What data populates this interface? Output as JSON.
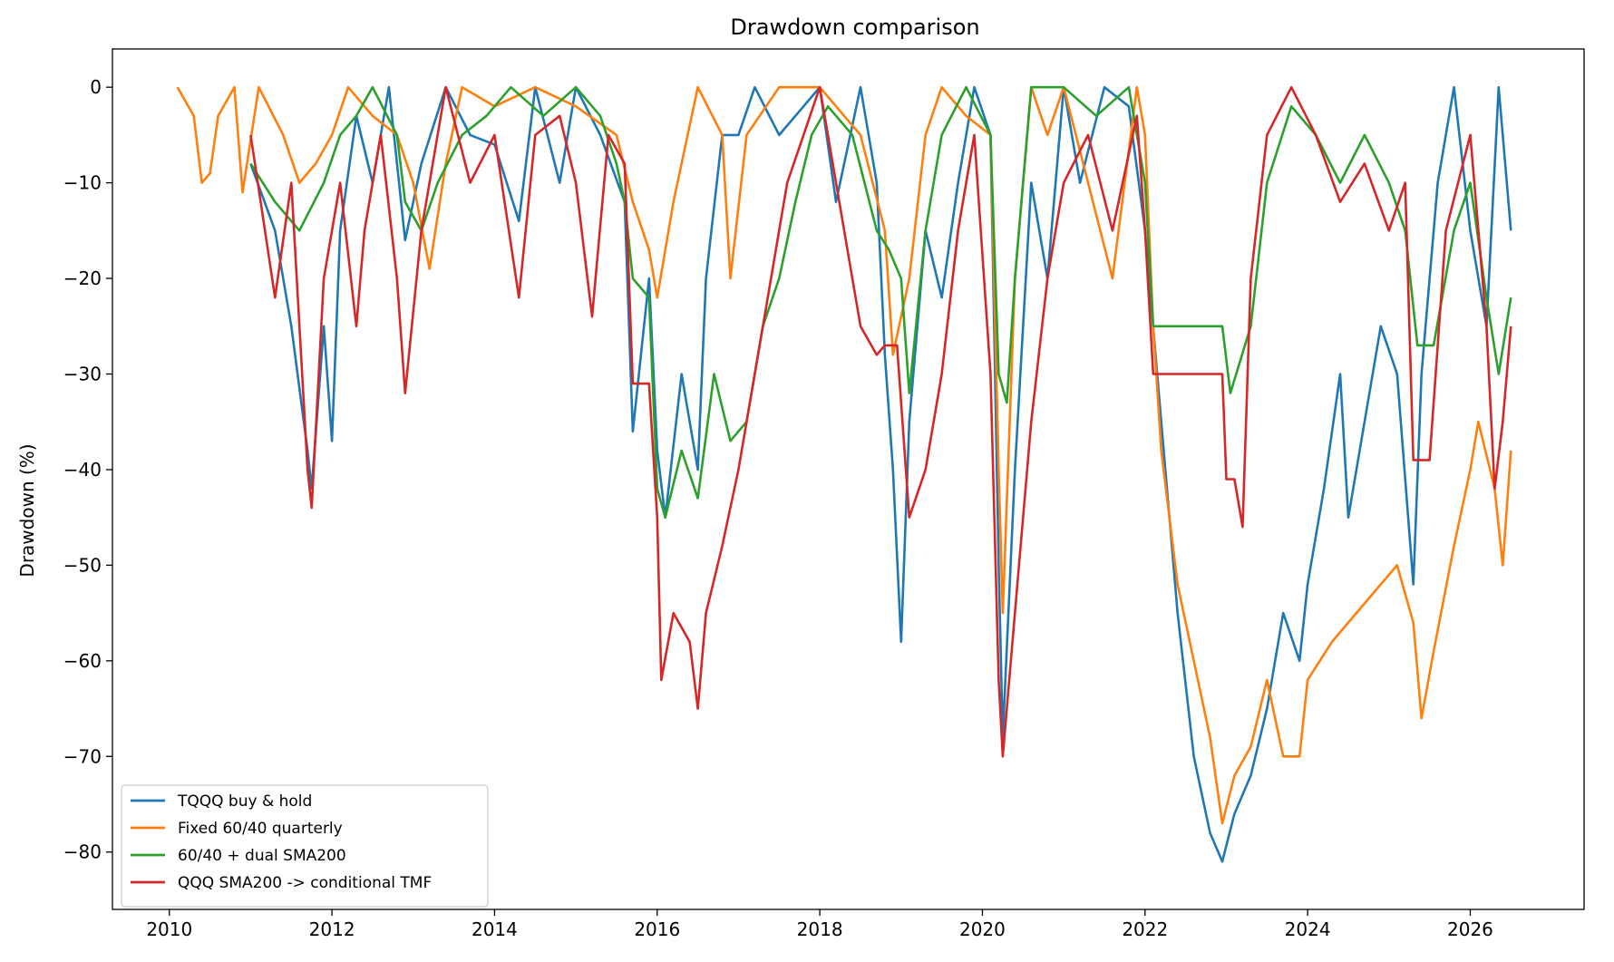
{
  "chart_data": {
    "type": "line",
    "title": "Drawdown comparison",
    "xlabel": "",
    "ylabel": "Drawdown (%)",
    "xlim": [
      2009.3,
      2027.4
    ],
    "ylim": [
      -86,
      4
    ],
    "x_ticks": [
      2010,
      2012,
      2014,
      2016,
      2018,
      2020,
      2022,
      2024,
      2026
    ],
    "y_ticks": [
      0,
      -10,
      -20,
      -30,
      -40,
      -50,
      -60,
      -70,
      -80
    ],
    "grid": false,
    "legend_position": "lower-left",
    "series": [
      {
        "name": "TQQQ buy & hold",
        "color": "#1f77b4",
        "points": [
          [
            2011.0,
            -8
          ],
          [
            2011.3,
            -15
          ],
          [
            2011.5,
            -25
          ],
          [
            2011.7,
            -38
          ],
          [
            2011.75,
            -42
          ],
          [
            2011.9,
            -25
          ],
          [
            2012.0,
            -37
          ],
          [
            2012.1,
            -15
          ],
          [
            2012.3,
            -3
          ],
          [
            2012.5,
            -10
          ],
          [
            2012.7,
            0
          ],
          [
            2012.9,
            -16
          ],
          [
            2013.1,
            -8
          ],
          [
            2013.4,
            0
          ],
          [
            2013.7,
            -5
          ],
          [
            2014.0,
            -6
          ],
          [
            2014.3,
            -14
          ],
          [
            2014.5,
            0
          ],
          [
            2014.8,
            -10
          ],
          [
            2015.0,
            0
          ],
          [
            2015.3,
            -5
          ],
          [
            2015.6,
            -12
          ],
          [
            2015.7,
            -36
          ],
          [
            2015.9,
            -20
          ],
          [
            2016.0,
            -38
          ],
          [
            2016.1,
            -45
          ],
          [
            2016.3,
            -30
          ],
          [
            2016.5,
            -40
          ],
          [
            2016.6,
            -20
          ],
          [
            2016.8,
            -5
          ],
          [
            2017.0,
            -5
          ],
          [
            2017.2,
            0
          ],
          [
            2017.5,
            -5
          ],
          [
            2017.8,
            -2
          ],
          [
            2018.0,
            0
          ],
          [
            2018.2,
            -12
          ],
          [
            2018.5,
            0
          ],
          [
            2018.7,
            -10
          ],
          [
            2018.8,
            -28
          ],
          [
            2018.9,
            -40
          ],
          [
            2019.0,
            -58
          ],
          [
            2019.1,
            -35
          ],
          [
            2019.3,
            -15
          ],
          [
            2019.5,
            -22
          ],
          [
            2019.7,
            -10
          ],
          [
            2019.9,
            0
          ],
          [
            2020.1,
            -5
          ],
          [
            2020.2,
            -50
          ],
          [
            2020.25,
            -68
          ],
          [
            2020.4,
            -40
          ],
          [
            2020.6,
            -10
          ],
          [
            2020.8,
            -20
          ],
          [
            2021.0,
            0
          ],
          [
            2021.2,
            -10
          ],
          [
            2021.5,
            0
          ],
          [
            2021.8,
            -2
          ],
          [
            2022.0,
            -15
          ],
          [
            2022.2,
            -35
          ],
          [
            2022.4,
            -55
          ],
          [
            2022.6,
            -70
          ],
          [
            2022.8,
            -78
          ],
          [
            2022.95,
            -81
          ],
          [
            2023.1,
            -76
          ],
          [
            2023.3,
            -72
          ],
          [
            2023.5,
            -65
          ],
          [
            2023.7,
            -55
          ],
          [
            2023.9,
            -60
          ],
          [
            2024.0,
            -52
          ],
          [
            2024.2,
            -42
          ],
          [
            2024.4,
            -30
          ],
          [
            2024.5,
            -45
          ],
          [
            2024.7,
            -35
          ],
          [
            2024.9,
            -25
          ],
          [
            2025.1,
            -30
          ],
          [
            2025.3,
            -52
          ],
          [
            2025.4,
            -30
          ],
          [
            2025.6,
            -10
          ],
          [
            2025.8,
            0
          ],
          [
            2026.0,
            -15
          ],
          [
            2026.2,
            -25
          ],
          [
            2026.35,
            0
          ],
          [
            2026.5,
            -15
          ]
        ]
      },
      {
        "name": "Fixed 60/40 quarterly",
        "color": "#ff7f0e",
        "points": [
          [
            2010.1,
            0
          ],
          [
            2010.3,
            -3
          ],
          [
            2010.4,
            -10
          ],
          [
            2010.5,
            -9
          ],
          [
            2010.6,
            -3
          ],
          [
            2010.8,
            0
          ],
          [
            2010.9,
            -11
          ],
          [
            2011.1,
            0
          ],
          [
            2011.4,
            -5
          ],
          [
            2011.6,
            -10
          ],
          [
            2011.8,
            -8
          ],
          [
            2012.0,
            -5
          ],
          [
            2012.2,
            0
          ],
          [
            2012.5,
            -3
          ],
          [
            2012.8,
            -5
          ],
          [
            2013.0,
            -10
          ],
          [
            2013.2,
            -19
          ],
          [
            2013.4,
            -8
          ],
          [
            2013.6,
            0
          ],
          [
            2014.0,
            -2
          ],
          [
            2014.5,
            0
          ],
          [
            2015.0,
            -2
          ],
          [
            2015.5,
            -5
          ],
          [
            2015.7,
            -12
          ],
          [
            2015.9,
            -17
          ],
          [
            2016.0,
            -22
          ],
          [
            2016.2,
            -12
          ],
          [
            2016.5,
            0
          ],
          [
            2016.8,
            -5
          ],
          [
            2016.9,
            -20
          ],
          [
            2017.1,
            -5
          ],
          [
            2017.5,
            0
          ],
          [
            2018.0,
            0
          ],
          [
            2018.5,
            -5
          ],
          [
            2018.8,
            -15
          ],
          [
            2018.9,
            -28
          ],
          [
            2019.1,
            -20
          ],
          [
            2019.3,
            -5
          ],
          [
            2019.5,
            0
          ],
          [
            2019.8,
            -3
          ],
          [
            2020.1,
            -5
          ],
          [
            2020.2,
            -40
          ],
          [
            2020.25,
            -55
          ],
          [
            2020.4,
            -20
          ],
          [
            2020.6,
            0
          ],
          [
            2020.8,
            -5
          ],
          [
            2021.0,
            0
          ],
          [
            2021.3,
            -10
          ],
          [
            2021.6,
            -20
          ],
          [
            2021.9,
            0
          ],
          [
            2022.0,
            -5
          ],
          [
            2022.1,
            -25
          ],
          [
            2022.2,
            -38
          ],
          [
            2022.4,
            -52
          ],
          [
            2022.6,
            -60
          ],
          [
            2022.8,
            -68
          ],
          [
            2022.95,
            -77
          ],
          [
            2023.1,
            -72
          ],
          [
            2023.3,
            -69
          ],
          [
            2023.5,
            -62
          ],
          [
            2023.7,
            -70
          ],
          [
            2023.9,
            -70
          ],
          [
            2024.0,
            -62
          ],
          [
            2024.3,
            -58
          ],
          [
            2024.6,
            -55
          ],
          [
            2024.9,
            -52
          ],
          [
            2025.1,
            -50
          ],
          [
            2025.3,
            -56
          ],
          [
            2025.4,
            -66
          ],
          [
            2025.55,
            -59
          ],
          [
            2025.8,
            -48
          ],
          [
            2026.0,
            -40
          ],
          [
            2026.1,
            -35
          ],
          [
            2026.3,
            -42
          ],
          [
            2026.4,
            -50
          ],
          [
            2026.5,
            -38
          ]
        ]
      },
      {
        "name": "60/40 + dual SMA200",
        "color": "#2ca02c",
        "points": [
          [
            2011.0,
            -8
          ],
          [
            2011.3,
            -12
          ],
          [
            2011.6,
            -15
          ],
          [
            2011.9,
            -10
          ],
          [
            2012.1,
            -5
          ],
          [
            2012.3,
            -3
          ],
          [
            2012.5,
            0
          ],
          [
            2012.8,
            -5
          ],
          [
            2012.9,
            -12
          ],
          [
            2013.1,
            -15
          ],
          [
            2013.3,
            -10
          ],
          [
            2013.6,
            -5
          ],
          [
            2013.9,
            -3
          ],
          [
            2014.2,
            0
          ],
          [
            2014.6,
            -3
          ],
          [
            2015.0,
            0
          ],
          [
            2015.3,
            -3
          ],
          [
            2015.5,
            -8
          ],
          [
            2015.6,
            -12
          ],
          [
            2015.7,
            -20
          ],
          [
            2015.9,
            -22
          ],
          [
            2016.0,
            -42
          ],
          [
            2016.1,
            -45
          ],
          [
            2016.3,
            -38
          ],
          [
            2016.5,
            -43
          ],
          [
            2016.7,
            -30
          ],
          [
            2016.9,
            -37
          ],
          [
            2017.1,
            -35
          ],
          [
            2017.3,
            -25
          ],
          [
            2017.5,
            -20
          ],
          [
            2017.7,
            -12
          ],
          [
            2017.9,
            -5
          ],
          [
            2018.1,
            -2
          ],
          [
            2018.4,
            -5
          ],
          [
            2018.7,
            -15
          ],
          [
            2018.85,
            -17
          ],
          [
            2019.0,
            -20
          ],
          [
            2019.1,
            -32
          ],
          [
            2019.3,
            -15
          ],
          [
            2019.5,
            -5
          ],
          [
            2019.8,
            0
          ],
          [
            2020.1,
            -5
          ],
          [
            2020.2,
            -30
          ],
          [
            2020.3,
            -33
          ],
          [
            2020.4,
            -20
          ],
          [
            2020.6,
            0
          ],
          [
            2021.0,
            0
          ],
          [
            2021.4,
            -3
          ],
          [
            2021.8,
            0
          ],
          [
            2022.0,
            -10
          ],
          [
            2022.1,
            -25
          ],
          [
            2022.95,
            -25
          ],
          [
            2023.05,
            -32
          ],
          [
            2023.3,
            -25
          ],
          [
            2023.5,
            -10
          ],
          [
            2023.8,
            -2
          ],
          [
            2024.1,
            -5
          ],
          [
            2024.4,
            -10
          ],
          [
            2024.7,
            -5
          ],
          [
            2025.0,
            -10
          ],
          [
            2025.2,
            -15
          ],
          [
            2025.35,
            -27
          ],
          [
            2025.55,
            -27
          ],
          [
            2025.8,
            -15
          ],
          [
            2026.0,
            -10
          ],
          [
            2026.2,
            -22
          ],
          [
            2026.35,
            -30
          ],
          [
            2026.5,
            -22
          ]
        ]
      },
      {
        "name": "QQQ SMA200 -> conditional TMF",
        "color": "#d62728",
        "points": [
          [
            2011.0,
            -5
          ],
          [
            2011.3,
            -22
          ],
          [
            2011.5,
            -10
          ],
          [
            2011.7,
            -40
          ],
          [
            2011.75,
            -44
          ],
          [
            2011.9,
            -20
          ],
          [
            2012.1,
            -10
          ],
          [
            2012.3,
            -25
          ],
          [
            2012.4,
            -15
          ],
          [
            2012.6,
            -5
          ],
          [
            2012.8,
            -20
          ],
          [
            2012.9,
            -32
          ],
          [
            2013.1,
            -15
          ],
          [
            2013.4,
            0
          ],
          [
            2013.7,
            -10
          ],
          [
            2014.0,
            -5
          ],
          [
            2014.3,
            -22
          ],
          [
            2014.5,
            -5
          ],
          [
            2014.8,
            -3
          ],
          [
            2015.0,
            -10
          ],
          [
            2015.2,
            -24
          ],
          [
            2015.4,
            -5
          ],
          [
            2015.6,
            -8
          ],
          [
            2015.7,
            -31
          ],
          [
            2015.9,
            -31
          ],
          [
            2016.0,
            -45
          ],
          [
            2016.05,
            -62
          ],
          [
            2016.2,
            -55
          ],
          [
            2016.4,
            -58
          ],
          [
            2016.5,
            -65
          ],
          [
            2016.6,
            -55
          ],
          [
            2016.8,
            -48
          ],
          [
            2017.0,
            -40
          ],
          [
            2017.2,
            -30
          ],
          [
            2017.4,
            -20
          ],
          [
            2017.6,
            -10
          ],
          [
            2017.8,
            -5
          ],
          [
            2018.0,
            0
          ],
          [
            2018.3,
            -15
          ],
          [
            2018.5,
            -25
          ],
          [
            2018.7,
            -28
          ],
          [
            2018.8,
            -27
          ],
          [
            2018.95,
            -27
          ],
          [
            2019.1,
            -45
          ],
          [
            2019.3,
            -40
          ],
          [
            2019.5,
            -30
          ],
          [
            2019.7,
            -15
          ],
          [
            2019.9,
            -5
          ],
          [
            2020.1,
            -30
          ],
          [
            2020.2,
            -62
          ],
          [
            2020.25,
            -70
          ],
          [
            2020.4,
            -55
          ],
          [
            2020.6,
            -35
          ],
          [
            2020.8,
            -20
          ],
          [
            2021.0,
            -10
          ],
          [
            2021.3,
            -5
          ],
          [
            2021.6,
            -15
          ],
          [
            2021.9,
            -3
          ],
          [
            2022.0,
            -15
          ],
          [
            2022.1,
            -30
          ],
          [
            2022.95,
            -30
          ],
          [
            2023.0,
            -41
          ],
          [
            2023.1,
            -41
          ],
          [
            2023.2,
            -46
          ],
          [
            2023.3,
            -20
          ],
          [
            2023.5,
            -5
          ],
          [
            2023.8,
            0
          ],
          [
            2024.1,
            -5
          ],
          [
            2024.4,
            -12
          ],
          [
            2024.7,
            -8
          ],
          [
            2025.0,
            -15
          ],
          [
            2025.2,
            -10
          ],
          [
            2025.3,
            -39
          ],
          [
            2025.5,
            -39
          ],
          [
            2025.7,
            -15
          ],
          [
            2026.0,
            -5
          ],
          [
            2026.2,
            -25
          ],
          [
            2026.3,
            -42
          ],
          [
            2026.4,
            -35
          ],
          [
            2026.5,
            -25
          ]
        ]
      }
    ]
  }
}
